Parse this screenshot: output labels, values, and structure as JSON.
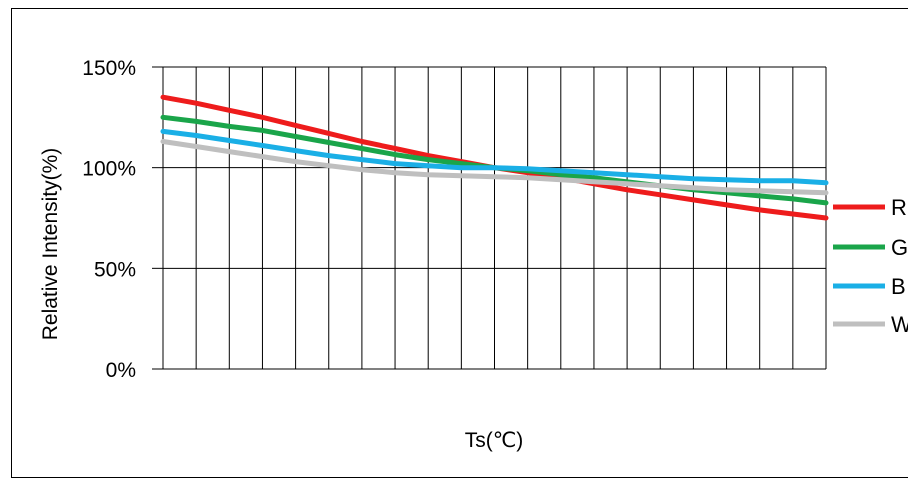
{
  "chart_data": {
    "type": "line",
    "title": "",
    "xlabel": "Ts(℃)",
    "ylabel": "Relative Intensity(%)",
    "ylim": [
      0,
      150
    ],
    "yticks": [
      "0%",
      "50%",
      "100%",
      "150%"
    ],
    "ytick_values": [
      0,
      50,
      100,
      150
    ],
    "grid": true,
    "legend_position": "right",
    "x_count": 21,
    "x": [
      0,
      1,
      2,
      3,
      4,
      5,
      6,
      7,
      8,
      9,
      10,
      11,
      12,
      13,
      14,
      15,
      16,
      17,
      18,
      19,
      20
    ],
    "series": [
      {
        "name": "R",
        "color": "#ee1c1c",
        "values": [
          135,
          132,
          128.5,
          125,
          121,
          117,
          113,
          109.5,
          106,
          103,
          100,
          97.5,
          95,
          92,
          89,
          86.5,
          84,
          81.5,
          79,
          77,
          75
        ]
      },
      {
        "name": "G",
        "color": "#1aa54a",
        "values": [
          125,
          123,
          120.5,
          118.5,
          115.5,
          112.5,
          109.5,
          106.5,
          104,
          102,
          100,
          98.5,
          96.5,
          95,
          93,
          91,
          89,
          87.5,
          86,
          84.5,
          82.5
        ]
      },
      {
        "name": "B",
        "color": "#1aafe6",
        "values": [
          118,
          116,
          113.5,
          111,
          108.5,
          106,
          104,
          102,
          101,
          100,
          100,
          99.5,
          98.5,
          97.5,
          96.5,
          95.5,
          94.5,
          94,
          93.5,
          93.5,
          92.5
        ]
      },
      {
        "name": "W",
        "color": "#bfbfbf",
        "values": [
          113,
          110.5,
          108,
          105.5,
          103,
          101,
          99,
          97.5,
          96.5,
          96,
          95.5,
          95,
          94,
          93,
          92,
          91,
          90,
          89,
          88.5,
          88,
          87.5
        ]
      }
    ]
  }
}
